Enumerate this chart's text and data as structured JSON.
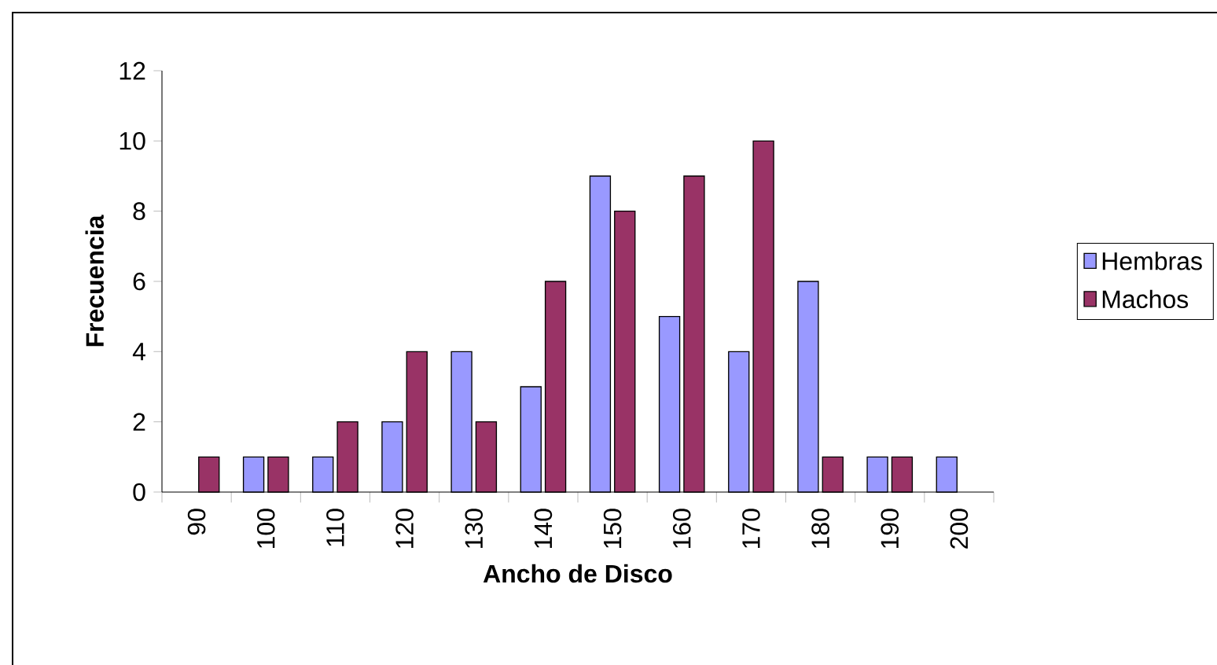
{
  "chart_data": {
    "type": "bar",
    "xlabel": "Ancho de Disco",
    "ylabel": "Frecuencia",
    "categories": [
      "90",
      "100",
      "110",
      "120",
      "130",
      "140",
      "150",
      "160",
      "170",
      "180",
      "190",
      "200"
    ],
    "series": [
      {
        "name": "Hembras",
        "color": "#9999ff",
        "values": [
          null,
          1,
          1,
          2,
          4,
          3,
          9,
          5,
          4,
          6,
          1,
          1
        ]
      },
      {
        "name": "Machos",
        "color": "#993366",
        "values": [
          1,
          1,
          2,
          4,
          2,
          6,
          8,
          9,
          10,
          1,
          1,
          null
        ]
      }
    ],
    "ylim": [
      0,
      12
    ],
    "yticks": [
      0,
      2,
      4,
      6,
      8,
      10,
      12
    ],
    "grid": false,
    "legend": "right"
  }
}
